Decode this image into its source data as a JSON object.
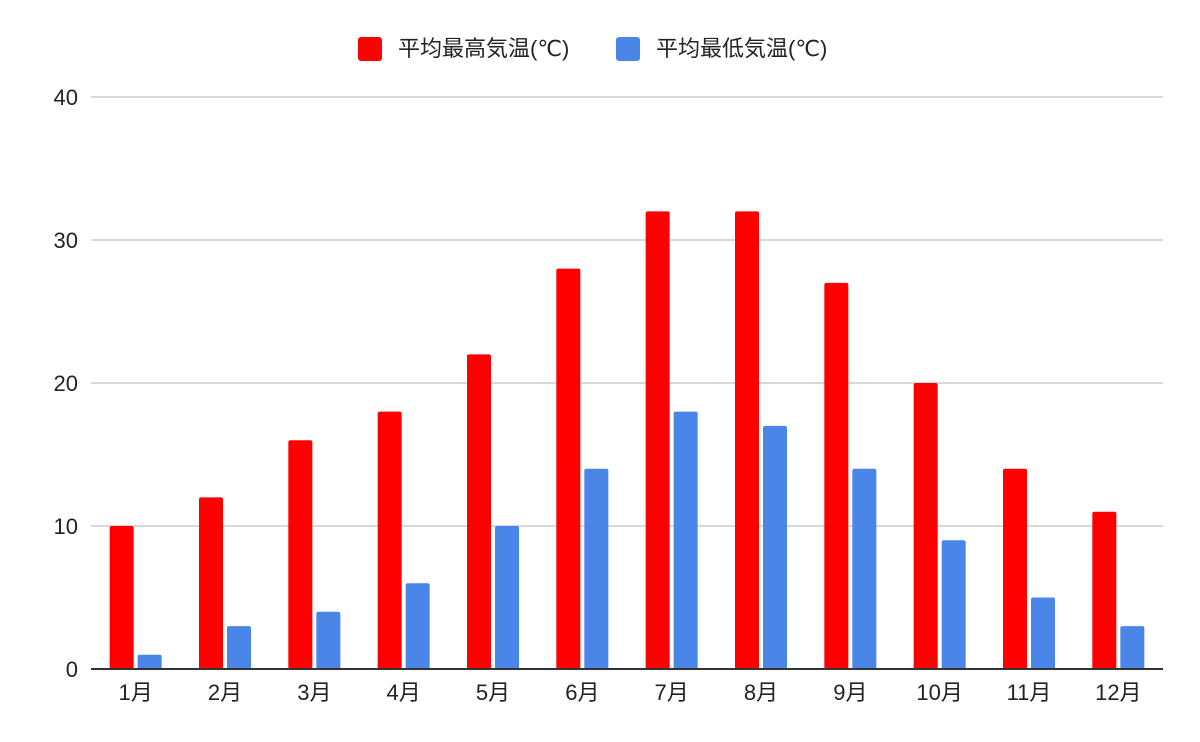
{
  "chart_data": {
    "type": "bar",
    "categories": [
      "1月",
      "2月",
      "3月",
      "4月",
      "5月",
      "6月",
      "7月",
      "8月",
      "9月",
      "10月",
      "11月",
      "12月"
    ],
    "series": [
      {
        "name": "平均最高気温(℃)",
        "color": "#ff0000",
        "values": [
          10,
          12,
          16,
          18,
          22,
          28,
          32,
          32,
          27,
          20,
          14,
          11
        ]
      },
      {
        "name": "平均最低気温(℃)",
        "color": "#4a86e8",
        "values": [
          1,
          3,
          4,
          6,
          10,
          14,
          18,
          17,
          14,
          9,
          5,
          3
        ]
      }
    ],
    "ylim": [
      0,
      40
    ],
    "yticks": [
      0,
      10,
      20,
      30,
      40
    ],
    "grid": true,
    "legend_position": "top-center",
    "title": "",
    "xlabel": "",
    "ylabel": ""
  }
}
